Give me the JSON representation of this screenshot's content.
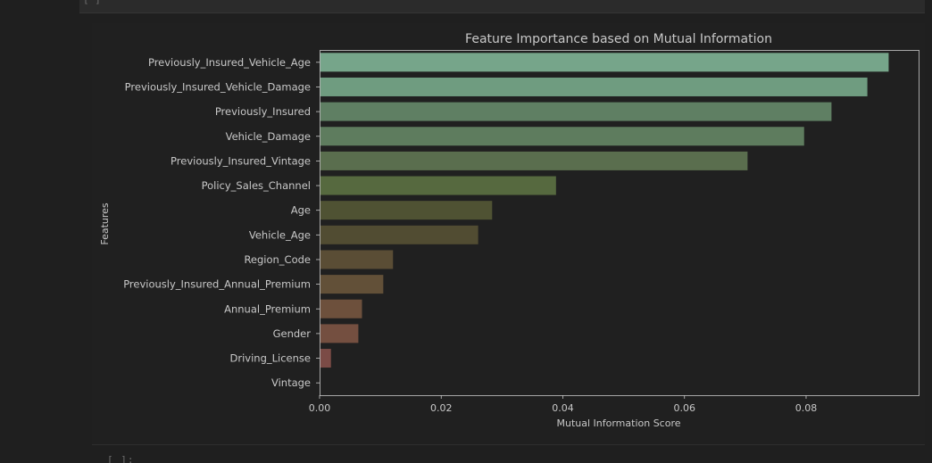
{
  "notebook": {
    "prev_cell_prompt": "[ ]",
    "next_cell_prompt": "[ ]:"
  },
  "chart_data": {
    "type": "bar",
    "orientation": "horizontal",
    "title": "Feature Importance based on Mutual Information",
    "xlabel": "Mutual Information Score",
    "ylabel": "Features",
    "xlim": [
      0,
      0.0985
    ],
    "xticks": [
      0.0,
      0.02,
      0.04,
      0.06,
      0.08
    ],
    "xtick_labels": [
      "0.00",
      "0.02",
      "0.04",
      "0.06",
      "0.08"
    ],
    "grid": false,
    "categories": [
      "Previously_Insured_Vehicle_Age",
      "Previously_Insured_Vehicle_Damage",
      "Previously_Insured",
      "Vehicle_Damage",
      "Previously_Insured_Vintage",
      "Policy_Sales_Channel",
      "Age",
      "Vehicle_Age",
      "Region_Code",
      "Previously_Insured_Annual_Premium",
      "Annual_Premium",
      "Gender",
      "Driving_License",
      "Vintage"
    ],
    "values": [
      0.0935,
      0.09,
      0.0841,
      0.0796,
      0.0703,
      0.0388,
      0.0283,
      0.026,
      0.012,
      0.0104,
      0.0069,
      0.0063,
      0.0018,
      0.0
    ],
    "colors": [
      "#76a58a",
      "#6f9c80",
      "#5f7f63",
      "#5e7c5e",
      "#5a6e4e",
      "#56693f",
      "#4f5233",
      "#514c32",
      "#5a4d35",
      "#625038",
      "#6d503c",
      "#744f40",
      "#7b4b46",
      "#7e4a4a"
    ],
    "background_color": "#202020",
    "text_color": "#c8c8c8",
    "spine_color": "#c8c8c8"
  }
}
